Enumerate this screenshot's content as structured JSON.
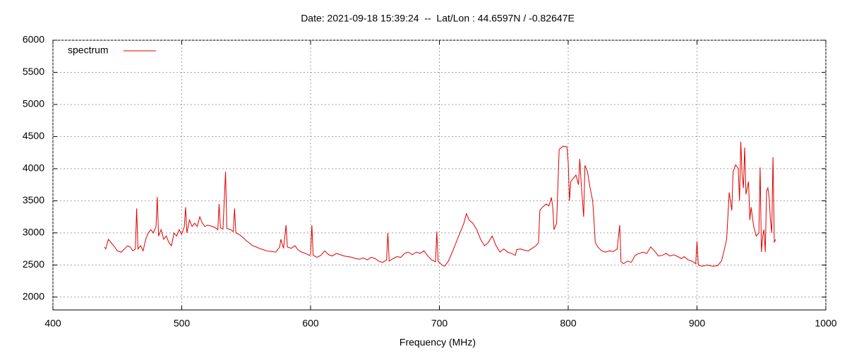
{
  "chart_data": {
    "type": "line",
    "title": "Date: 2021-09-18 15:39:24  --  Lat/Lon : 44.6597N / -0.82647E",
    "x_label": "Frequency (MHz)",
    "xlim": [
      400,
      1000
    ],
    "xticks": [
      400,
      500,
      600,
      700,
      800,
      900,
      1000
    ],
    "ylim": [
      1800,
      6000
    ],
    "yticks": [
      2000,
      2500,
      3000,
      3500,
      4000,
      4500,
      5000,
      5500,
      6000
    ],
    "grid": true,
    "legend": "top-left",
    "x": [
      440,
      441,
      443,
      445,
      448,
      450,
      453,
      456,
      458,
      460,
      462,
      464,
      465,
      466,
      468,
      470,
      472,
      474,
      476,
      478,
      480,
      481,
      482,
      484,
      486,
      488,
      490,
      492,
      494,
      496,
      498,
      500,
      502,
      503,
      504,
      506,
      508,
      510,
      512,
      514,
      516,
      518,
      520,
      522,
      524,
      526,
      528,
      529,
      530,
      532,
      534,
      535,
      538,
      540,
      541,
      542,
      545,
      548,
      550,
      552,
      555,
      558,
      560,
      563,
      566,
      570,
      573,
      576,
      577,
      579,
      581,
      582,
      585,
      588,
      590,
      593,
      596,
      599,
      600,
      601,
      602,
      605,
      608,
      611,
      614,
      617,
      620,
      623,
      626,
      629,
      632,
      635,
      638,
      641,
      644,
      647,
      650,
      653,
      656,
      659,
      660,
      661,
      664,
      667,
      670,
      673,
      676,
      679,
      682,
      685,
      688,
      691,
      694,
      697,
      698,
      699,
      702,
      704,
      707,
      710,
      713,
      716,
      719,
      721,
      723,
      726,
      729,
      732,
      735,
      738,
      741,
      744,
      747,
      750,
      753,
      756,
      759,
      760,
      763,
      766,
      769,
      772,
      775,
      777,
      778,
      780,
      783,
      785,
      787,
      788,
      789,
      791,
      793,
      796,
      799,
      800,
      801,
      802,
      804,
      806,
      808,
      809,
      810,
      812,
      813,
      815,
      817,
      819,
      820,
      821,
      823,
      826,
      829,
      832,
      835,
      838,
      840,
      841,
      843,
      846,
      849,
      852,
      855,
      858,
      861,
      864,
      867,
      870,
      873,
      876,
      879,
      882,
      885,
      888,
      890,
      893,
      896,
      899,
      900,
      901,
      904,
      908,
      912,
      916,
      919,
      921,
      923,
      925,
      927,
      928,
      930,
      932,
      933,
      934,
      935,
      936,
      937,
      938,
      940,
      941,
      942,
      944,
      946,
      948,
      949,
      950,
      951,
      952,
      953,
      954,
      955,
      956,
      957,
      958,
      959,
      960,
      961
    ],
    "series": [
      {
        "name": "spectrum",
        "color": "#e00000",
        "values": [
          2780,
          2750,
          2900,
          2850,
          2780,
          2720,
          2700,
          2760,
          2800,
          2780,
          2720,
          2750,
          3380,
          2750,
          2800,
          2720,
          2900,
          3000,
          3050,
          3000,
          3100,
          3560,
          2950,
          3050,
          2900,
          2950,
          2850,
          2800,
          3000,
          2950,
          3050,
          2980,
          3100,
          3400,
          3000,
          3200,
          3100,
          3150,
          3100,
          3250,
          3150,
          3100,
          3120,
          3110,
          3100,
          3080,
          3050,
          3450,
          3080,
          3060,
          3950,
          3070,
          3050,
          3020,
          3380,
          3000,
          2970,
          2920,
          2880,
          2850,
          2800,
          2780,
          2760,
          2740,
          2720,
          2710,
          2700,
          2780,
          2900,
          2760,
          3120,
          2780,
          2760,
          2800,
          2740,
          2700,
          2680,
          2650,
          2660,
          3120,
          2650,
          2620,
          2650,
          2720,
          2660,
          2640,
          2680,
          2660,
          2640,
          2630,
          2620,
          2600,
          2590,
          2610,
          2580,
          2620,
          2600,
          2560,
          2540,
          2580,
          3000,
          2560,
          2600,
          2630,
          2620,
          2680,
          2700,
          2660,
          2700,
          2680,
          2720,
          2640,
          2580,
          2550,
          3020,
          2560,
          2500,
          2480,
          2560,
          2700,
          2850,
          3000,
          3150,
          3300,
          3200,
          3150,
          3050,
          2900,
          2800,
          2850,
          2950,
          2800,
          2700,
          2750,
          2700,
          2680,
          2650,
          2740,
          2750,
          2730,
          2720,
          2760,
          2800,
          2850,
          3350,
          3400,
          3450,
          3420,
          3550,
          3400,
          3050,
          3150,
          4300,
          4350,
          4340,
          4100,
          3500,
          3800,
          3850,
          3900,
          3750,
          4150,
          3800,
          3250,
          4050,
          3950,
          3700,
          3500,
          3200,
          2850,
          2780,
          2720,
          2700,
          2720,
          2710,
          2750,
          3120,
          2550,
          2520,
          2560,
          2540,
          2650,
          2680,
          2700,
          2680,
          2780,
          2720,
          2640,
          2650,
          2680,
          2640,
          2660,
          2630,
          2600,
          2630,
          2580,
          2560,
          2520,
          2870,
          2500,
          2480,
          2500,
          2480,
          2490,
          2560,
          2720,
          2900,
          3630,
          3350,
          3950,
          4060,
          4000,
          3500,
          4420,
          3900,
          3700,
          4330,
          3600,
          3800,
          3200,
          3400,
          3100,
          2950,
          3000,
          4020,
          2700,
          2950,
          3050,
          2700,
          3650,
          3700,
          3550,
          3200,
          3000,
          4180,
          2850,
          2900
        ]
      }
    ]
  }
}
